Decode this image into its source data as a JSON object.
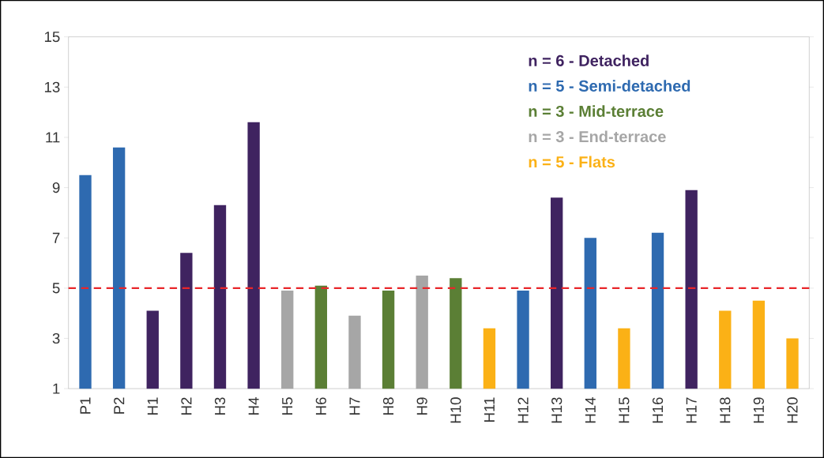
{
  "chart_data": {
    "type": "bar",
    "categories": [
      "P1",
      "P2",
      "H1",
      "H2",
      "H3",
      "H4",
      "H5",
      "H6",
      "H7",
      "H8",
      "H9",
      "H10",
      "H11",
      "H12",
      "H13",
      "H14",
      "H15",
      "H16",
      "H17",
      "H18",
      "H19",
      "H20"
    ],
    "series": [
      {
        "name": "n = 6 - Detached",
        "color": "#3f2360",
        "values": [
          null,
          null,
          4.1,
          6.4,
          8.3,
          11.6,
          null,
          null,
          null,
          null,
          null,
          null,
          null,
          null,
          8.6,
          null,
          null,
          null,
          8.9,
          null,
          null,
          null
        ]
      },
      {
        "name": "n = 5 - Semi-detached",
        "color": "#2e6ab0",
        "values": [
          9.5,
          10.6,
          null,
          null,
          null,
          null,
          null,
          null,
          null,
          null,
          null,
          null,
          null,
          4.9,
          null,
          7.0,
          null,
          7.2,
          null,
          null,
          null,
          null
        ]
      },
      {
        "name": "n = 3 - Mid-terrace",
        "color": "#5b7f35",
        "values": [
          null,
          null,
          null,
          null,
          null,
          null,
          null,
          5.1,
          null,
          4.9,
          null,
          5.4,
          null,
          null,
          null,
          null,
          null,
          null,
          null,
          null,
          null,
          null
        ]
      },
      {
        "name": "n = 3 - End-terrace",
        "color": "#a6a6a6",
        "values": [
          null,
          null,
          null,
          null,
          null,
          null,
          4.9,
          null,
          3.9,
          null,
          5.5,
          null,
          null,
          null,
          null,
          null,
          null,
          null,
          null,
          null,
          null,
          null
        ]
      },
      {
        "name": "n = 5 - Flats",
        "color": "#fbb116",
        "values": [
          null,
          null,
          null,
          null,
          null,
          null,
          null,
          null,
          null,
          null,
          null,
          null,
          3.4,
          null,
          null,
          null,
          3.4,
          null,
          null,
          4.1,
          4.5,
          3.0
        ]
      }
    ],
    "ylim": [
      1,
      15
    ],
    "yticks": [
      1,
      3,
      5,
      7,
      9,
      11,
      13,
      15
    ],
    "ref_lines": [
      {
        "axis": "y",
        "value": 5,
        "color": "#e8262a",
        "line_style": "dashed"
      }
    ],
    "legend": "top right"
  }
}
